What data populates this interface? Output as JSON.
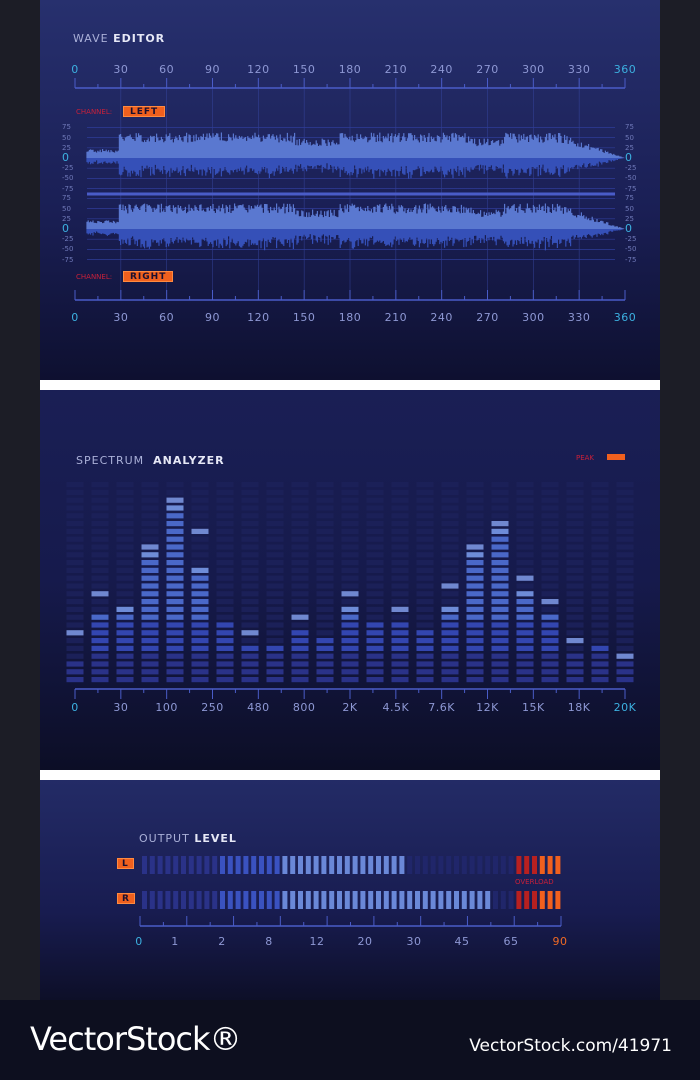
{
  "wave_editor": {
    "title_light": "WAVE",
    "title_bold": "EDITOR",
    "time_ticks": [
      "0",
      "30",
      "60",
      "90",
      "120",
      "150",
      "180",
      "210",
      "240",
      "270",
      "300",
      "330",
      "360"
    ],
    "amplitude_ticks": [
      "75",
      "50",
      "25",
      "0",
      "-25",
      "-50",
      "-75"
    ],
    "channel_label": "CHANNEL:",
    "left_channel": "LEFT",
    "right_channel": "RIGHT"
  },
  "spectrum": {
    "title_light": "SPECTRUM",
    "title_bold": "ANALYZER",
    "peak_label": "PEAK",
    "freq_ticks": [
      "0",
      "30",
      "100",
      "250",
      "480",
      "800",
      "2K",
      "4.5K",
      "7.6K",
      "12K",
      "15K",
      "18K",
      "20K"
    ],
    "rows": 26,
    "levels": [
      3,
      9,
      10,
      17,
      23,
      15,
      8,
      5,
      5,
      7,
      6,
      10,
      8,
      8,
      7,
      10,
      17,
      20,
      12,
      9,
      4,
      5,
      3
    ],
    "peaks": [
      7,
      12,
      10,
      18,
      24,
      20,
      8,
      7,
      5,
      9,
      6,
      12,
      8,
      10,
      7,
      13,
      18,
      21,
      14,
      11,
      6,
      5,
      4
    ]
  },
  "output_level": {
    "title_light": "OUTPUT",
    "title_bold": "LEVEL",
    "left_label": "L",
    "right_label": "R",
    "overload_label": "OVERLOAD",
    "segments": 54,
    "overload_segments": 6,
    "left_lit": 34,
    "right_lit": 45,
    "scale_ticks": [
      "0",
      "1",
      "2",
      "8",
      "12",
      "20",
      "30",
      "45",
      "65",
      "90"
    ]
  },
  "colors": {
    "accent_orange": "#f0601e",
    "cyan": "#3cb0e0",
    "bar_lit": "#4a68c8",
    "bar_peak": "#a8b8e8",
    "bar_dim": "#1f2560"
  },
  "watermark": {
    "brand": "VectorStock®",
    "id": "VectorStock.com/41971"
  }
}
